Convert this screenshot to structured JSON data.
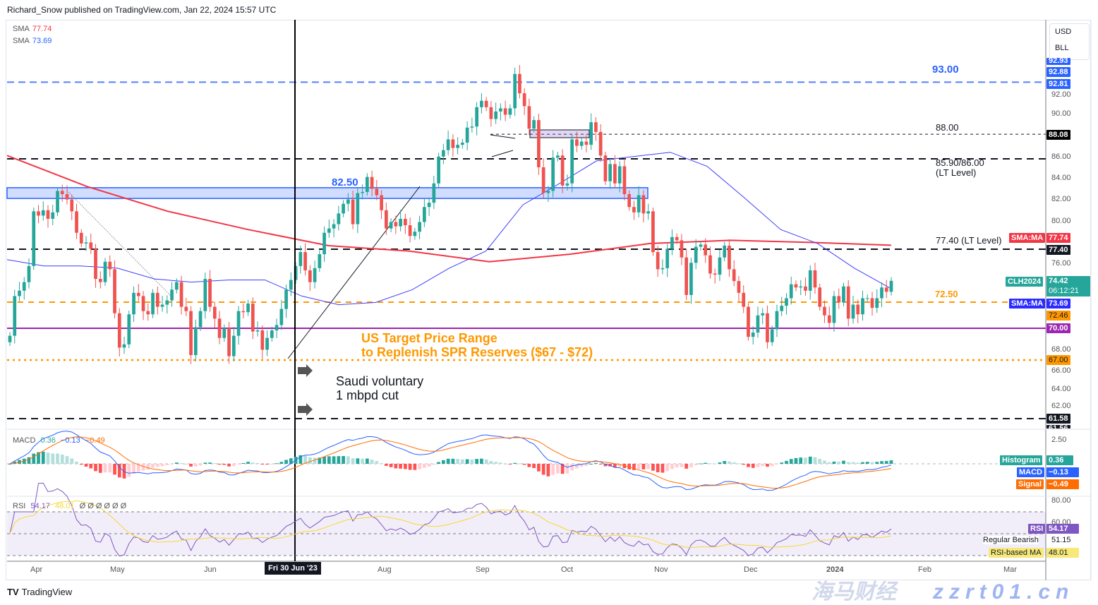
{
  "header": {
    "published": "Richard_Snow published on TradingView.com, Jan 22, 2024 15:57 UTC"
  },
  "legend": {
    "sma1_label": "SMA",
    "sma1_value": "77.74",
    "sma2_label": "SMA",
    "sma2_value": "73.69"
  },
  "currency": {
    "line1": "USD",
    "line2": "BLL"
  },
  "colors": {
    "up": "#26a69a",
    "down": "#ef5350",
    "sma200": "#f23645",
    "sma50": "#2962ff",
    "orange": "#ff9800",
    "purple": "#9c27b0",
    "blue": "#2962ff"
  },
  "chart_data": {
    "type": "candlestick",
    "symbol": "CLH2024",
    "closes": [
      69.3,
      73,
      73.5,
      74.3,
      75.8,
      80.9,
      80.5,
      81,
      80.2,
      80.8,
      82.8,
      82.5,
      82,
      80.9,
      78.9,
      77.9,
      78,
      77.4,
      74.6,
      74.3,
      76.2,
      75.5,
      71.4,
      68.2,
      68.5,
      71.3,
      73.3,
      73,
      71.6,
      71.3,
      73.3,
      72,
      72.2,
      72.6,
      73.6,
      74.3,
      72,
      71.6,
      67.5,
      70.1,
      71.6,
      74.6,
      72,
      70.9,
      69.1,
      70,
      67.4,
      69.3,
      71.6,
      71.5,
      72.3,
      69.7,
      69.8,
      68,
      69.1,
      69.8,
      70.3,
      71.8,
      73.6,
      74.5,
      75.8,
      77.1,
      75.4,
      74.3,
      75.6,
      76.9,
      78.9,
      79.3,
      79.7,
      80.7,
      81.6,
      82,
      79.7,
      82.6,
      82.7,
      84.1,
      83,
      82.4,
      81,
      79.3,
      79.9,
      79.5,
      80.2,
      79.6,
      78.6,
      79,
      79.9,
      81.3,
      81.7,
      83.5,
      86,
      86.6,
      87.6,
      86.8,
      87.1,
      87.3,
      88.7,
      88.8,
      90.6,
      91.2,
      90.6,
      89.5,
      90.2,
      90.5,
      89.9,
      90.5,
      93.7,
      91.9,
      90.7,
      88.6,
      89.4,
      85,
      82.6,
      82.8,
      85.9,
      86.1,
      83.3,
      83.5,
      87.6,
      87,
      87.4,
      87.1,
      89.2,
      88.3,
      86.1,
      83.7,
      85.3,
      83.5,
      85.1,
      82.5,
      81.3,
      80.8,
      82.4,
      80.7,
      80.9,
      77.1,
      75.5,
      75.6,
      77.4,
      78.5,
      78.2,
      76.6,
      73.1,
      76.1,
      77.6,
      77.8,
      76.8,
      75.1,
      75,
      76.6,
      77.7,
      75.5,
      74.4,
      73.3,
      72,
      69.2,
      69.6,
      71.2,
      71.4,
      68.7,
      69.9,
      71.6,
      72.1,
      72.8,
      74.1,
      73.8,
      73.9,
      73.5,
      75.4,
      73.8,
      72,
      71.2,
      70.5,
      73,
      72.4,
      73.9,
      70.9,
      72.2,
      71.3,
      72.8,
      72.8,
      71.9,
      72.8,
      73.8,
      73.4,
      74.42
    ],
    "sma_200": [
      86.1,
      83.2,
      80.9,
      79.2,
      77.7,
      77.2,
      76.2,
      76.9,
      77.9,
      78.2,
      78.0,
      77.74
    ],
    "sma_50": [
      76.4,
      75.8,
      75.8,
      75.6,
      74.6,
      74.3,
      74.5,
      74.5,
      73.0,
      72.2,
      72.4,
      73.6,
      75.6,
      77.2,
      81.5,
      83.5,
      85.6,
      86.0,
      86.4,
      85.1,
      82.2,
      79.2,
      77.9,
      75.6,
      73.69
    ],
    "ylim": [
      60.8,
      94.2
    ],
    "x_ticks": [
      "Apr",
      "May",
      "Jun",
      "Aug",
      "Sep",
      "Oct",
      "Nov",
      "Dec",
      "2024",
      "Feb",
      "Mar"
    ],
    "crosshair_date": "Fri 30 Jun '23",
    "y_ticks": [
      "92.00",
      "90.00",
      "86.00",
      "84.00",
      "82.00",
      "80.00",
      "76.00",
      "68.00",
      "66.00",
      "64.00",
      "62.00"
    ],
    "levels": [
      {
        "label": "93.00",
        "value": 93.0,
        "style": "blue-dashed"
      },
      {
        "label": "88.00",
        "value": 88.08,
        "style": "black-dotted"
      },
      {
        "label": "85.90/86.00",
        "sub": "(LT Level)",
        "value": 86.0,
        "style": "black-dashed"
      },
      {
        "label": "82.50",
        "value": 82.5,
        "zone": [
          82.1,
          83.1
        ],
        "style": "blue-zone"
      },
      {
        "label": "77.40 (LT Level)",
        "value": 77.4,
        "style": "black-dashed"
      },
      {
        "label": "72.50",
        "value": 72.5,
        "style": "orange-dashed"
      },
      {
        "value": 70.0,
        "style": "purple-solid"
      },
      {
        "value": 67.0,
        "style": "orange-dotted"
      },
      {
        "value": 61.58,
        "style": "black-dashed"
      }
    ],
    "price_labels": {
      "p9293": "92.93",
      "p9288": "92.88",
      "p9281": "92.81",
      "p8808": "88.08",
      "sma200_tag": "SMA:MA",
      "p7774": "77.74",
      "p7740": "77.40",
      "sym_tag": "CLH2024",
      "last": "74.42",
      "countdown": "06:12:21",
      "sma50_tag": "SMA:MA",
      "p7369": "73.69",
      "p7246": "72.46",
      "p7000": "70.00",
      "p6700": "67.00",
      "p6158": "61.58",
      "p6156": "61.56"
    }
  },
  "annotations": {
    "spr_line1": "US Target Price Range",
    "spr_line2": "to Replenish SPR Reserves ($67 - $72)",
    "saudi_line1": "Saudi voluntary",
    "saudi_line2": "1 mbpd cut"
  },
  "macd": {
    "title": "MACD",
    "hist": "0.36",
    "macd": "−0.13",
    "signal": "−0.49",
    "tick": "2.50",
    "hist_tag": "Histogram",
    "macd_tag": "MACD",
    "signal_tag": "Signal",
    "hist_val": "0.36",
    "macd_val": "−0.13",
    "signal_val": "−0.49"
  },
  "rsi": {
    "title": "RSI",
    "value": "54.17",
    "ma": "48.01",
    "extras": "Ø Ø Ø Ø Ø Ø",
    "tick80": "80.00",
    "tick60": "60.00",
    "rsi_tag": "RSI",
    "rsi_val": "54.17",
    "bear_tag": "Regular Bearish",
    "bear_val": "51.15",
    "ma_tag": "RSI-based MA",
    "ma_val": "48.01"
  },
  "footer": {
    "brand": "TradingView"
  },
  "watermark": {
    "cn": "海马财经",
    "url": "zzrt01.cn"
  }
}
